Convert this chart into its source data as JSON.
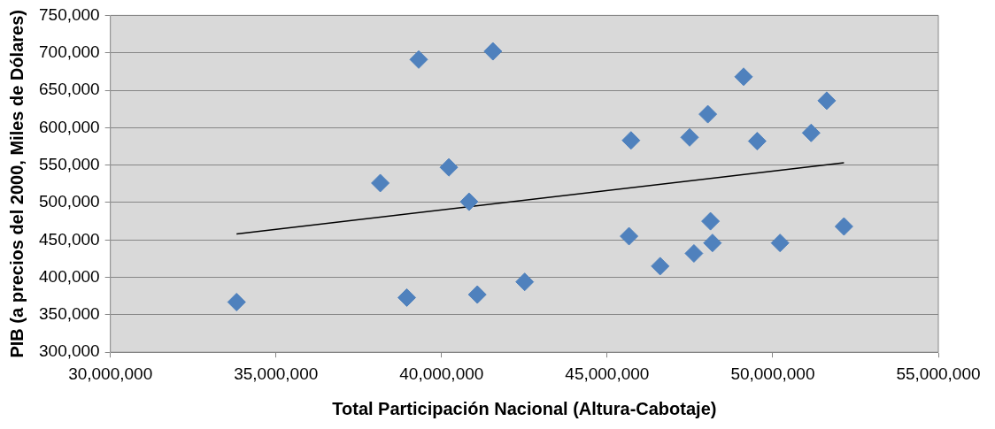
{
  "chart_data": {
    "type": "scatter",
    "xlabel": "Total Participación Nacional (Altura-Cabotaje)",
    "ylabel": "PIB (a precios del 2000, Miles de Dólares)",
    "x": [
      33810000,
      38950000,
      38150000,
      39310000,
      40220000,
      40830000,
      41080000,
      41550000,
      42510000,
      45660000,
      45720000,
      46600000,
      47490000,
      47620000,
      48040000,
      48120000,
      48180000,
      49120000,
      49530000,
      50220000,
      51160000,
      51630000,
      52150000
    ],
    "series": [
      {
        "color": "#4f81bd",
        "marker": "diamond",
        "values": [
          367000,
          373000,
          526000,
          691000,
          547000,
          501000,
          377000,
          702000,
          394000,
          455000,
          583000,
          415000,
          587000,
          432000,
          618000,
          475000,
          446000,
          668000,
          582000,
          446000,
          593000,
          636000,
          468000
        ]
      },
      {
        "type": "line",
        "color": "#000000",
        "marker": "none",
        "x": [
          33810000,
          52150000
        ],
        "values": [
          458000,
          553000
        ]
      }
    ],
    "xlim": [
      30000000,
      55000000
    ],
    "xticks": [
      {
        "value": 30000000,
        "label": "30,000,000"
      },
      {
        "value": 35000000,
        "label": "35,000,000"
      },
      {
        "value": 40000000,
        "label": "40,000,000"
      },
      {
        "value": 45000000,
        "label": "45,000,000"
      },
      {
        "value": 50000000,
        "label": "50,000,000"
      },
      {
        "value": 55000000,
        "label": "55,000,000"
      }
    ],
    "ylim": [
      300000,
      750000
    ],
    "yticks": [
      {
        "value": 300000,
        "label": "300,000"
      },
      {
        "value": 350000,
        "label": "350,000"
      },
      {
        "value": 400000,
        "label": "400,000"
      },
      {
        "value": 450000,
        "label": "450,000"
      },
      {
        "value": 500000,
        "label": "500,000"
      },
      {
        "value": 550000,
        "label": "550,000"
      },
      {
        "value": 600000,
        "label": "600,000"
      },
      {
        "value": 650000,
        "label": "650,000"
      },
      {
        "value": 700000,
        "label": "700,000"
      },
      {
        "value": 750000,
        "label": "750,000"
      }
    ],
    "grid": "y",
    "legend": false
  }
}
